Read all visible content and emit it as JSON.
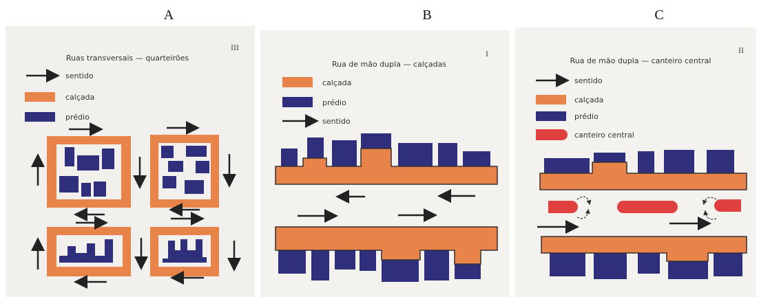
{
  "panels": [
    {
      "label": "A",
      "title": "Ruas transversais — quarteirões",
      "number": "III",
      "legend": [
        "sentido",
        "calçada",
        "prédio"
      ]
    },
    {
      "label": "B",
      "title": "Rua de mão dupla — calçadas",
      "number": "I",
      "legend": [
        "calçada",
        "prédio",
        "sentido"
      ]
    },
    {
      "label": "C",
      "title": "Rua de mão dupla — canteiro central",
      "number": "II",
      "legend": [
        "sentido",
        "calçada",
        "prédio",
        "canteiro central"
      ]
    }
  ]
}
